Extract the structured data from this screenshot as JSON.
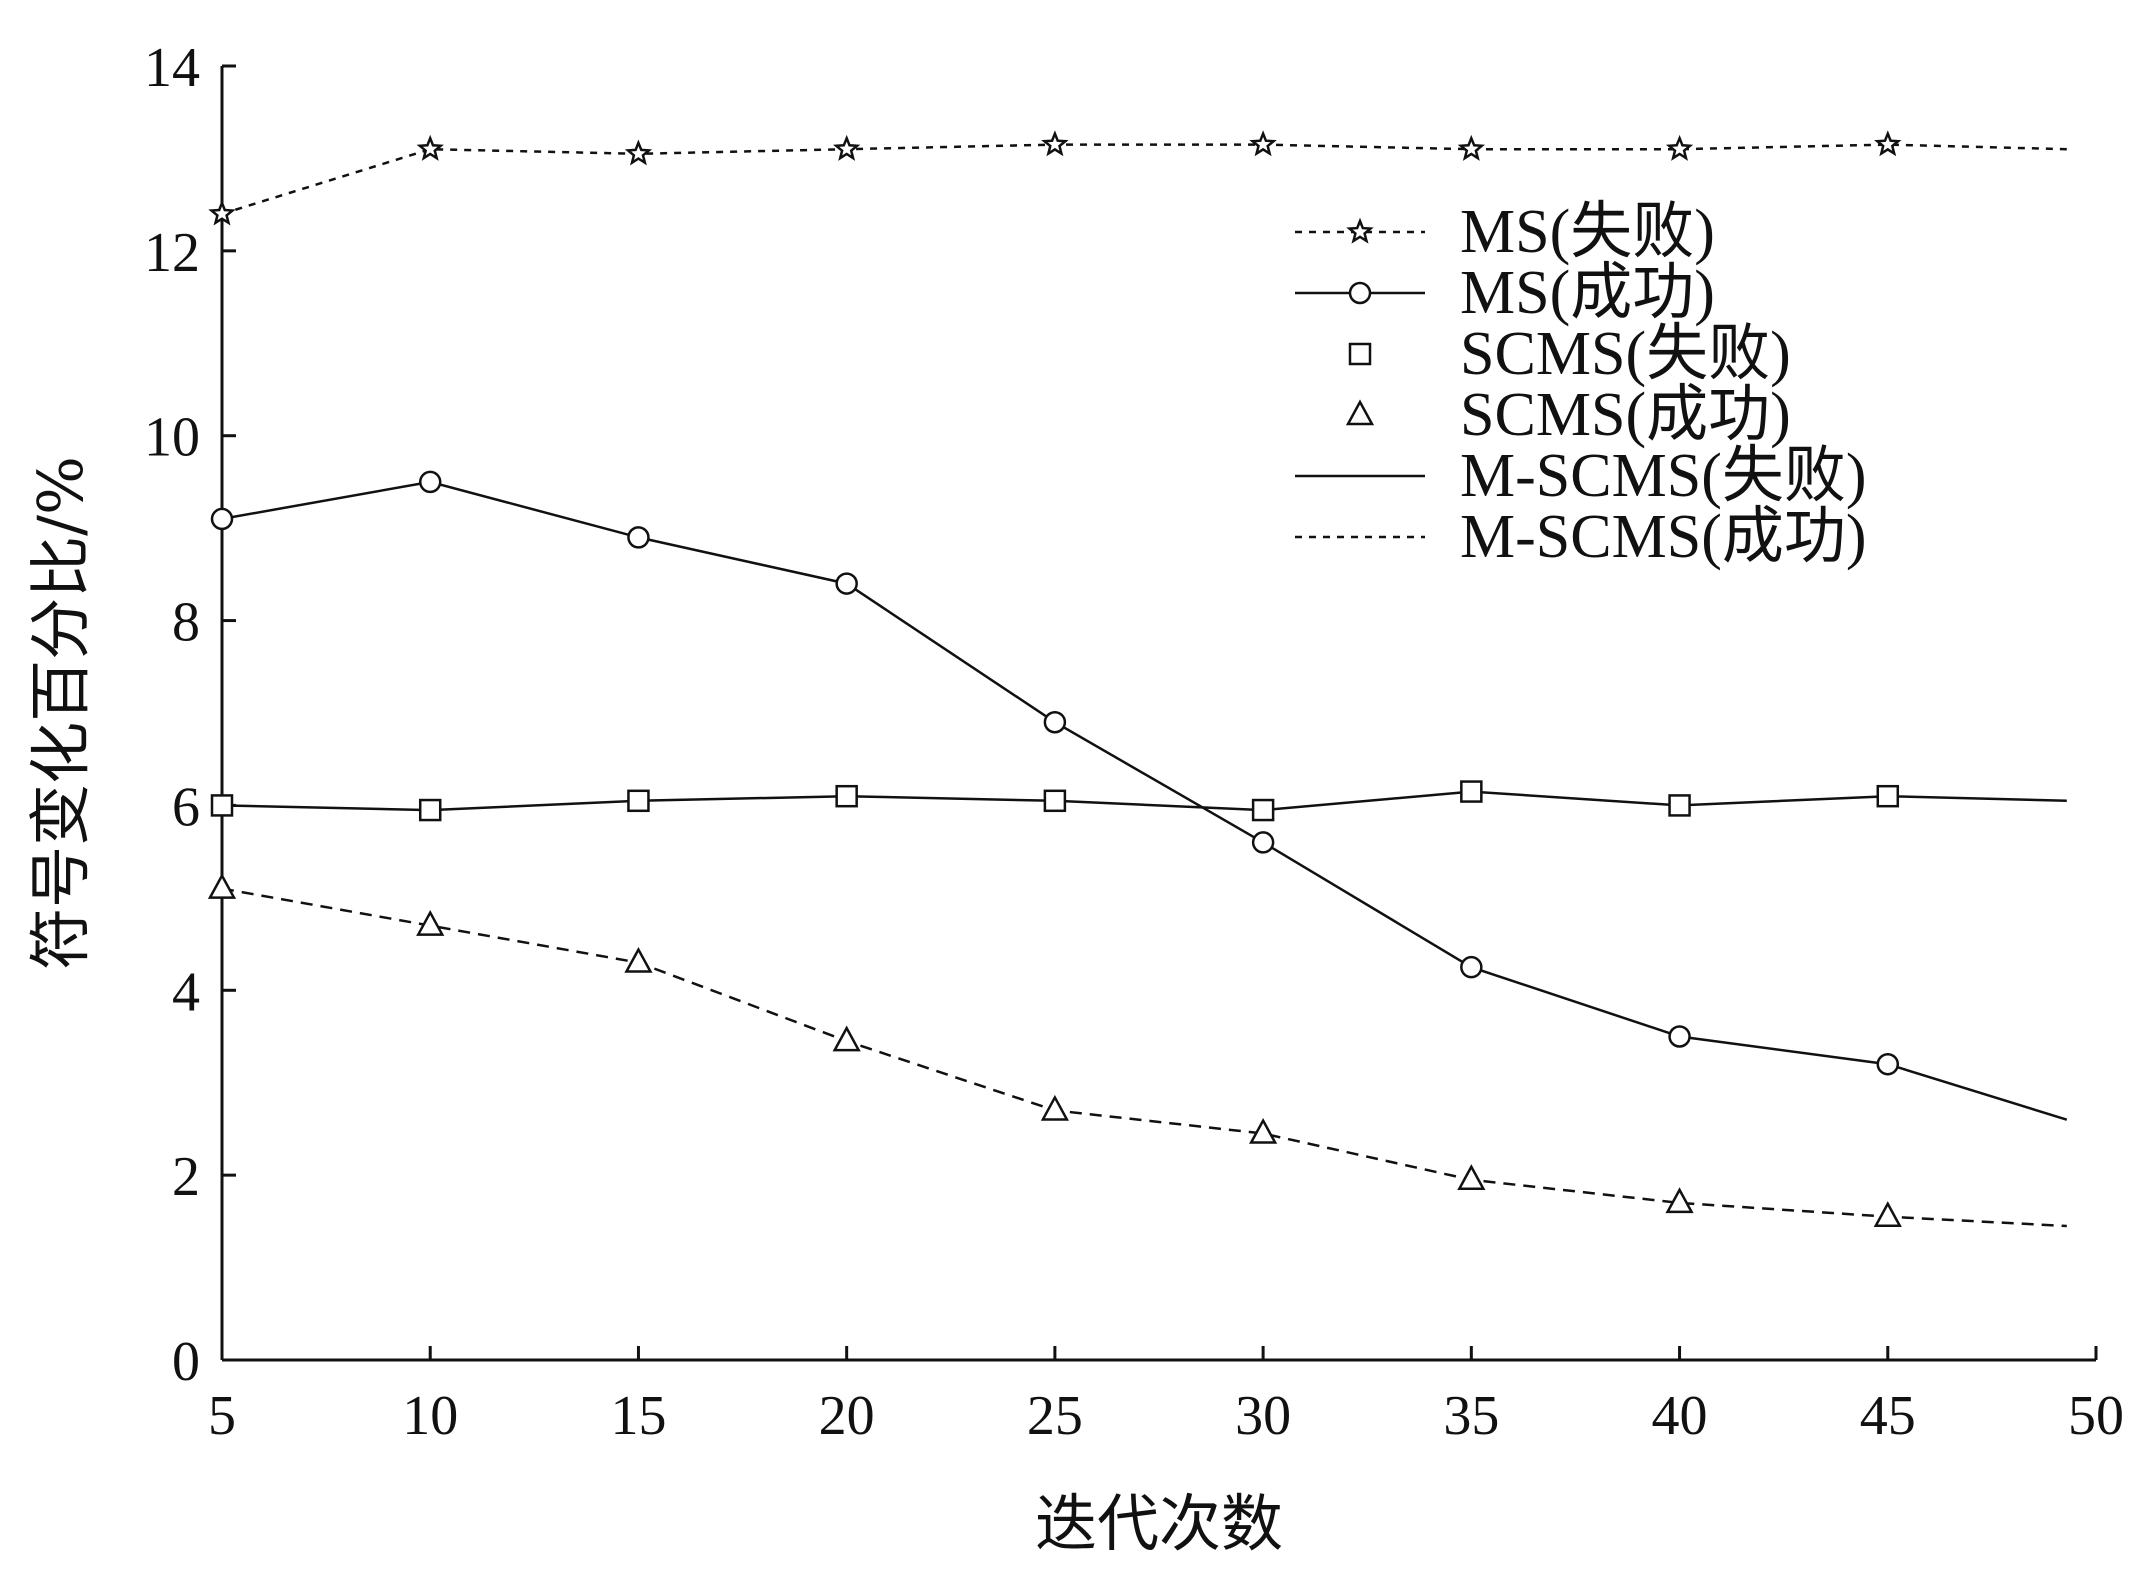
{
  "chart_data": {
    "type": "line",
    "title": "",
    "xlabel": "迭代次数",
    "ylabel": "符号变化百分比/%",
    "xlim": [
      5,
      50
    ],
    "ylim": [
      0,
      14
    ],
    "xticks": [
      5,
      10,
      15,
      20,
      25,
      30,
      35,
      40,
      45,
      50
    ],
    "yticks": [
      0,
      2,
      4,
      6,
      8,
      10,
      12,
      14
    ],
    "grid": false,
    "legend_position": "top-right",
    "x": [
      5,
      10,
      15,
      20,
      25,
      30,
      35,
      40,
      45,
      49.3
    ],
    "series": [
      {
        "name": "MS(失败)",
        "line": "dotted",
        "marker": "star",
        "values": [
          12.4,
          13.1,
          13.05,
          13.1,
          13.15,
          13.15,
          13.1,
          13.1,
          13.15,
          13.1
        ]
      },
      {
        "name": "MS(成功)",
        "line": "solid",
        "marker": "circle",
        "values": [
          9.1,
          9.5,
          8.9,
          8.4,
          6.9,
          5.6,
          4.25,
          3.5,
          3.2,
          2.6
        ]
      },
      {
        "name": "SCMS(失败)",
        "line": "solid",
        "marker": "square",
        "values": [
          6.0,
          5.95,
          6.05,
          6.1,
          6.05,
          5.95,
          6.15,
          6.0,
          6.1,
          6.05
        ]
      },
      {
        "name": "SCMS(成功)",
        "line": "dashed",
        "marker": "triangle",
        "values": [
          5.1,
          4.7,
          4.3,
          3.45,
          2.7,
          2.45,
          1.95,
          1.7,
          1.55,
          1.45
        ]
      }
    ],
    "legend_entries": [
      {
        "name": "MS(失败)",
        "line": "dotted",
        "marker": "star"
      },
      {
        "name": "MS(成功)",
        "line": "solid",
        "marker": "circle"
      },
      {
        "name": "SCMS(失败)",
        "line": "none",
        "marker": "square"
      },
      {
        "name": "SCMS(成功)",
        "line": "none",
        "marker": "triangle"
      },
      {
        "name": "M-SCMS(失败)",
        "line": "solid",
        "marker": "none"
      },
      {
        "name": "M-SCMS(成功)",
        "line": "dotted",
        "marker": "none"
      }
    ]
  }
}
